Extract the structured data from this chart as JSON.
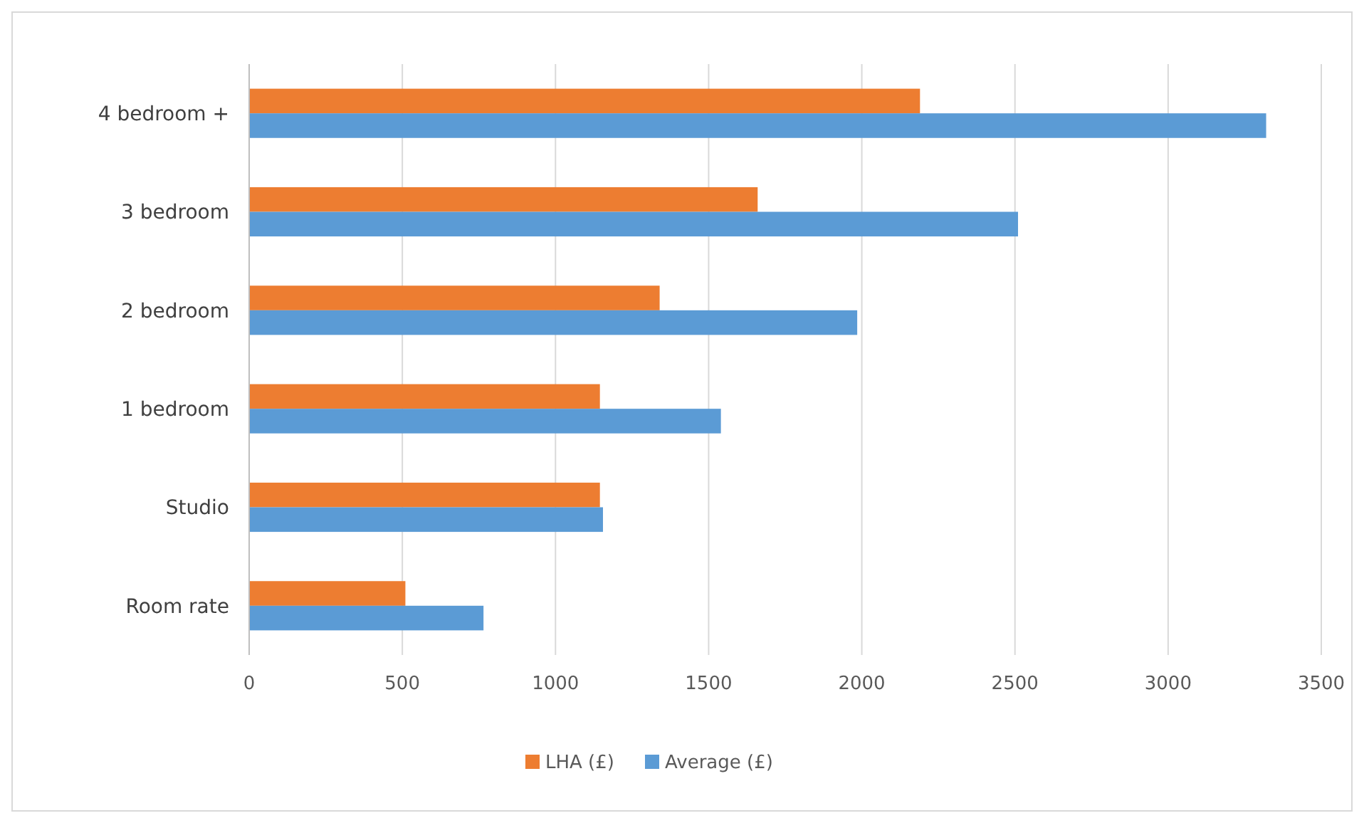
{
  "chart_data": {
    "type": "bar",
    "orientation": "horizontal",
    "categories": [
      "4 bedroom +",
      "3 bedroom",
      "2 bedroom",
      "1 bedroom",
      "Studio",
      "Room rate"
    ],
    "series": [
      {
        "name": "LHA (£)",
        "color": "#ed7d31",
        "values": [
          2190,
          1660,
          1340,
          1145,
          1145,
          510
        ]
      },
      {
        "name": "Average (£)",
        "color": "#5b9bd5",
        "values": [
          3320,
          2510,
          1985,
          1540,
          1155,
          765
        ]
      }
    ],
    "xlim": [
      0,
      3500
    ],
    "xticks": [
      0,
      500,
      1000,
      1500,
      2000,
      2500,
      3000,
      3500
    ],
    "grid": "x",
    "legend": "bottom"
  }
}
